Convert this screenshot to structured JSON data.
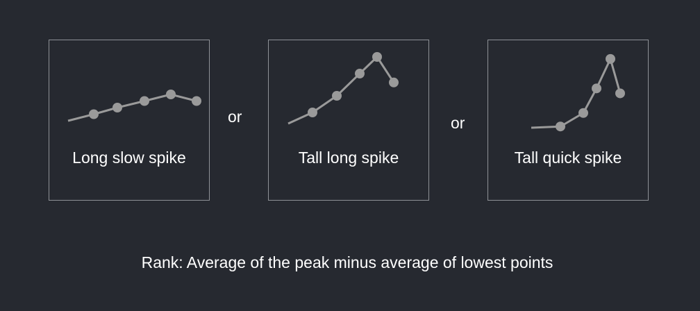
{
  "panels": [
    {
      "label": "Long slow spike",
      "points": [
        [
          0,
          0
        ],
        [
          1,
          1
        ],
        [
          2,
          2
        ],
        [
          3,
          3
        ],
        [
          4,
          4
        ],
        [
          5,
          3
        ]
      ],
      "markers": [
        false,
        true,
        true,
        true,
        true,
        true
      ]
    },
    {
      "label": "Tall long spike",
      "points": [
        [
          0,
          0
        ],
        [
          1,
          1
        ],
        [
          2,
          2.5
        ],
        [
          3,
          4.5
        ],
        [
          4,
          6
        ],
        [
          5,
          3.7
        ]
      ],
      "markers": [
        false,
        true,
        true,
        true,
        true,
        true
      ]
    },
    {
      "label": "Tall quick spike",
      "points": [
        [
          0,
          0
        ],
        [
          1,
          0.1
        ],
        [
          2,
          1.2
        ],
        [
          3,
          3.2
        ],
        [
          4,
          5.6
        ],
        [
          5,
          2.8
        ]
      ],
      "markers": [
        false,
        true,
        true,
        true,
        true,
        true
      ]
    }
  ],
  "separators": [
    "or",
    "or"
  ],
  "caption": "Rank: Average of the peak minus average of lowest points",
  "colors": {
    "background": "#262930",
    "line": "#9a9a9a",
    "border": "#8f9297",
    "text": "#ffffff"
  }
}
